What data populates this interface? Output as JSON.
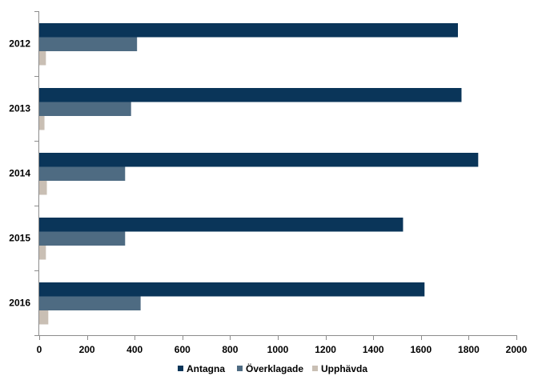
{
  "chart_data": {
    "type": "bar",
    "orientation": "horizontal",
    "categories": [
      "2012",
      "2013",
      "2014",
      "2015",
      "2016"
    ],
    "series": [
      {
        "name": "Antagna",
        "color": "#0a3559",
        "values": [
          1755,
          1770,
          1840,
          1525,
          1615
        ]
      },
      {
        "name": "Överklagade",
        "color": "#4e6b82",
        "values": [
          410,
          385,
          360,
          360,
          425
        ]
      },
      {
        "name": "Upphävda",
        "color": "#c9bfb4",
        "values": [
          28,
          22,
          32,
          28,
          38
        ]
      }
    ],
    "x_ticks": [
      "0",
      "200",
      "400",
      "600",
      "800",
      "1000",
      "1200",
      "1400",
      "1600",
      "1800",
      "2000"
    ],
    "xlim": [
      0,
      2000
    ],
    "title": "",
    "xlabel": "",
    "ylabel": "",
    "grid": false,
    "legend_position": "bottom"
  }
}
